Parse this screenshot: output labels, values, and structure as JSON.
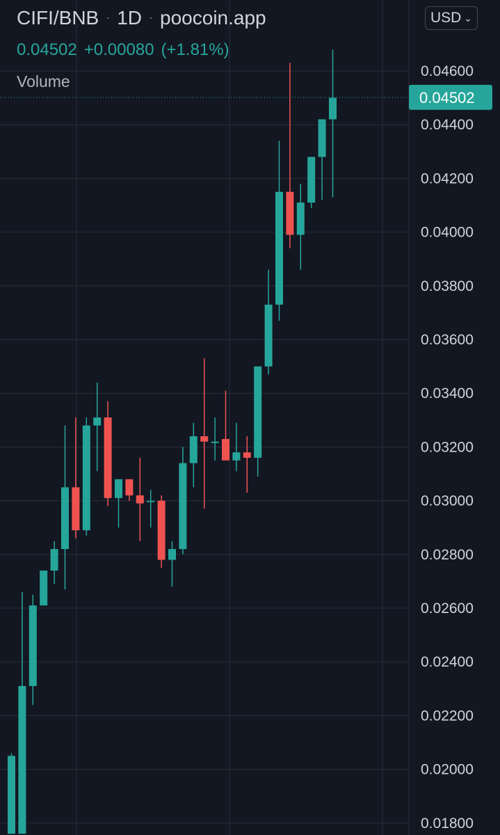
{
  "header": {
    "symbol": "CIFI/BNB",
    "interval": "1D",
    "source": "poocoin.app",
    "separator": "·"
  },
  "legend": {
    "last_price": "0.04502",
    "change": "+0.00080",
    "change_pct": "(+1.81%)",
    "volume_label": "Volume"
  },
  "currency": {
    "label": "USD",
    "chevron": "⌄"
  },
  "colors": {
    "background": "#131722",
    "grid": "#2a2e39",
    "up": "#26a69a",
    "down": "#ef5350",
    "text": "#d1d4dc"
  },
  "chart_data": {
    "type": "candlestick",
    "y_ticks": [
      "0.04600",
      "0.04400",
      "0.04200",
      "0.04000",
      "0.03800",
      "0.03600",
      "0.03400",
      "0.03200",
      "0.03000",
      "0.02800",
      "0.02600",
      "0.02400",
      "0.02200",
      "0.02000",
      "0.01800"
    ],
    "ylim": [
      0.0176,
      0.0471
    ],
    "last_price_label": "0.04502",
    "last_price": 0.04502,
    "grid": true,
    "candles": [
      {
        "o": 0.0176,
        "h": 0.0206,
        "l": 0.0176,
        "c": 0.0205
      },
      {
        "o": 0.0176,
        "h": 0.0266,
        "l": 0.0176,
        "c": 0.0231
      },
      {
        "o": 0.0231,
        "h": 0.0265,
        "l": 0.0224,
        "c": 0.0261
      },
      {
        "o": 0.0261,
        "h": 0.0274,
        "l": 0.0261,
        "c": 0.0274
      },
      {
        "o": 0.0274,
        "h": 0.0285,
        "l": 0.0269,
        "c": 0.0282
      },
      {
        "o": 0.0282,
        "h": 0.0328,
        "l": 0.0267,
        "c": 0.0305
      },
      {
        "o": 0.0305,
        "h": 0.0331,
        "l": 0.0286,
        "c": 0.0289
      },
      {
        "o": 0.0289,
        "h": 0.0331,
        "l": 0.0287,
        "c": 0.0328
      },
      {
        "o": 0.0328,
        "h": 0.0344,
        "l": 0.0311,
        "c": 0.0331
      },
      {
        "o": 0.0331,
        "h": 0.0337,
        "l": 0.0298,
        "c": 0.0301
      },
      {
        "o": 0.0301,
        "h": 0.0308,
        "l": 0.029,
        "c": 0.0308
      },
      {
        "o": 0.0308,
        "h": 0.0308,
        "l": 0.03,
        "c": 0.0302
      },
      {
        "o": 0.0302,
        "h": 0.0316,
        "l": 0.0285,
        "c": 0.0299
      },
      {
        "o": 0.03,
        "h": 0.0304,
        "l": 0.029,
        "c": 0.03
      },
      {
        "o": 0.03,
        "h": 0.0302,
        "l": 0.0275,
        "c": 0.0278
      },
      {
        "o": 0.0278,
        "h": 0.0285,
        "l": 0.0268,
        "c": 0.0282
      },
      {
        "o": 0.0282,
        "h": 0.032,
        "l": 0.028,
        "c": 0.0314
      },
      {
        "o": 0.0314,
        "h": 0.0329,
        "l": 0.0305,
        "c": 0.0324
      },
      {
        "o": 0.0324,
        "h": 0.0353,
        "l": 0.0297,
        "c": 0.0322
      },
      {
        "o": 0.0322,
        "h": 0.0331,
        "l": 0.0315,
        "c": 0.0322
      },
      {
        "o": 0.0323,
        "h": 0.0341,
        "l": 0.0315,
        "c": 0.0315
      },
      {
        "o": 0.0315,
        "h": 0.0329,
        "l": 0.0311,
        "c": 0.0318
      },
      {
        "o": 0.0318,
        "h": 0.0324,
        "l": 0.0303,
        "c": 0.0316
      },
      {
        "o": 0.0316,
        "h": 0.035,
        "l": 0.0309,
        "c": 0.035
      },
      {
        "o": 0.035,
        "h": 0.0386,
        "l": 0.0347,
        "c": 0.0373
      },
      {
        "o": 0.0373,
        "h": 0.0434,
        "l": 0.0367,
        "c": 0.0415
      },
      {
        "o": 0.0415,
        "h": 0.0463,
        "l": 0.0394,
        "c": 0.0399
      },
      {
        "o": 0.0399,
        "h": 0.0418,
        "l": 0.0386,
        "c": 0.0411
      },
      {
        "o": 0.0411,
        "h": 0.0428,
        "l": 0.0409,
        "c": 0.0428
      },
      {
        "o": 0.0428,
        "h": 0.0441,
        "l": 0.0412,
        "c": 0.0442
      },
      {
        "o": 0.0442,
        "h": 0.0468,
        "l": 0.0413,
        "c": 0.045
      }
    ]
  }
}
